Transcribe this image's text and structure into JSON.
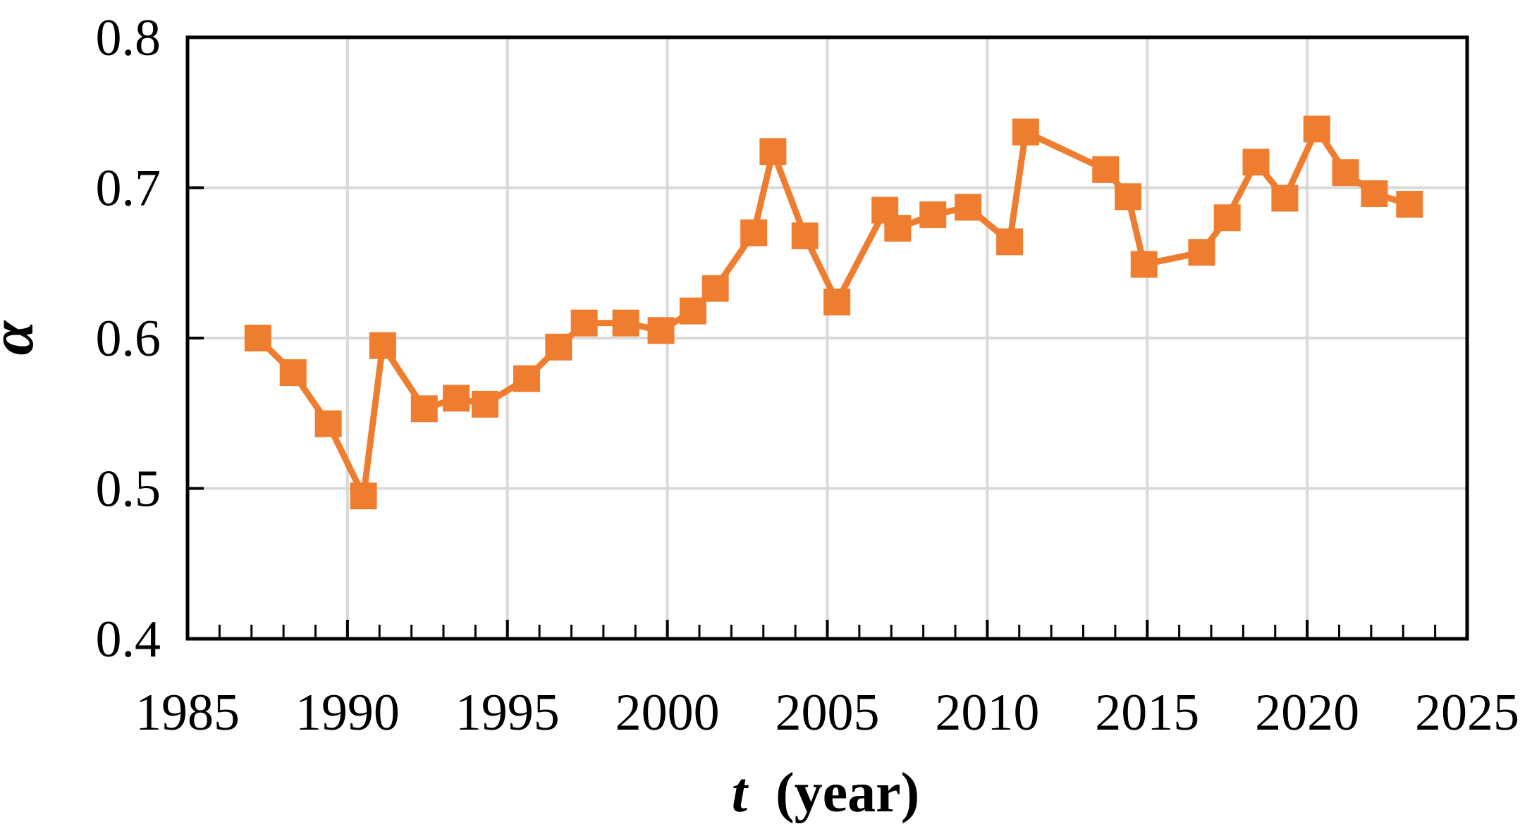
{
  "figure": {
    "description": "Line chart of exponent alpha versus time in years",
    "background_color": "#ffffff"
  },
  "chart_data": {
    "type": "line",
    "title": "",
    "xlabel": "t (year)",
    "xlabel_var": "t",
    "xlabel_rest": "(year)",
    "ylabel": "α",
    "xlim": [
      1985,
      2025
    ],
    "ylim": [
      0.4,
      0.8
    ],
    "x_ticks": [
      1985,
      1990,
      1995,
      2000,
      2005,
      2010,
      2015,
      2020,
      2025
    ],
    "x_tick_labels": [
      "1985",
      "1990",
      "1995",
      "2000",
      "2005",
      "2010",
      "2015",
      "2020",
      "2025"
    ],
    "x_minor_tick_step": 1,
    "y_ticks": [
      0.4,
      0.5,
      0.6,
      0.7,
      0.8
    ],
    "y_tick_labels": [
      "0.4",
      "0.5",
      "0.6",
      "0.7",
      "0.8"
    ],
    "grid": {
      "x_at": [
        1990,
        1995,
        2000,
        2005,
        2010,
        2015,
        2020
      ],
      "y_at": [
        0.5,
        0.6,
        0.7
      ],
      "color": "#d9d9d9"
    },
    "axis_color": "#000000",
    "legend": "none",
    "series": [
      {
        "name": "alpha",
        "color": "#ee7d2f",
        "marker": "square",
        "marker_size": 38,
        "line_width": 9,
        "points": [
          [
            1987.2,
            0.6
          ],
          [
            1988.3,
            0.577
          ],
          [
            1989.4,
            0.543
          ],
          [
            1990.5,
            0.495
          ],
          [
            1991.1,
            0.595
          ],
          [
            1992.4,
            0.553
          ],
          [
            1993.4,
            0.56
          ],
          [
            1994.3,
            0.556
          ],
          [
            1995.6,
            0.573
          ],
          [
            1996.6,
            0.594
          ],
          [
            1997.4,
            0.61
          ],
          [
            1998.7,
            0.61
          ],
          [
            1999.8,
            0.605
          ],
          [
            2000.8,
            0.618
          ],
          [
            2001.5,
            0.633
          ],
          [
            2002.7,
            0.67
          ],
          [
            2003.3,
            0.724
          ],
          [
            2004.3,
            0.668
          ],
          [
            2005.3,
            0.624
          ],
          [
            2006.8,
            0.685
          ],
          [
            2007.2,
            0.673
          ],
          [
            2008.3,
            0.682
          ],
          [
            2009.4,
            0.687
          ],
          [
            2010.7,
            0.664
          ],
          [
            2011.2,
            0.737
          ],
          [
            2013.7,
            0.712
          ],
          [
            2014.4,
            0.694
          ],
          [
            2014.9,
            0.649
          ],
          [
            2016.7,
            0.657
          ],
          [
            2017.5,
            0.68
          ],
          [
            2018.4,
            0.717
          ],
          [
            2019.3,
            0.693
          ],
          [
            2020.3,
            0.739
          ],
          [
            2021.2,
            0.71
          ],
          [
            2022.1,
            0.696
          ],
          [
            2023.2,
            0.689
          ]
        ]
      }
    ]
  }
}
